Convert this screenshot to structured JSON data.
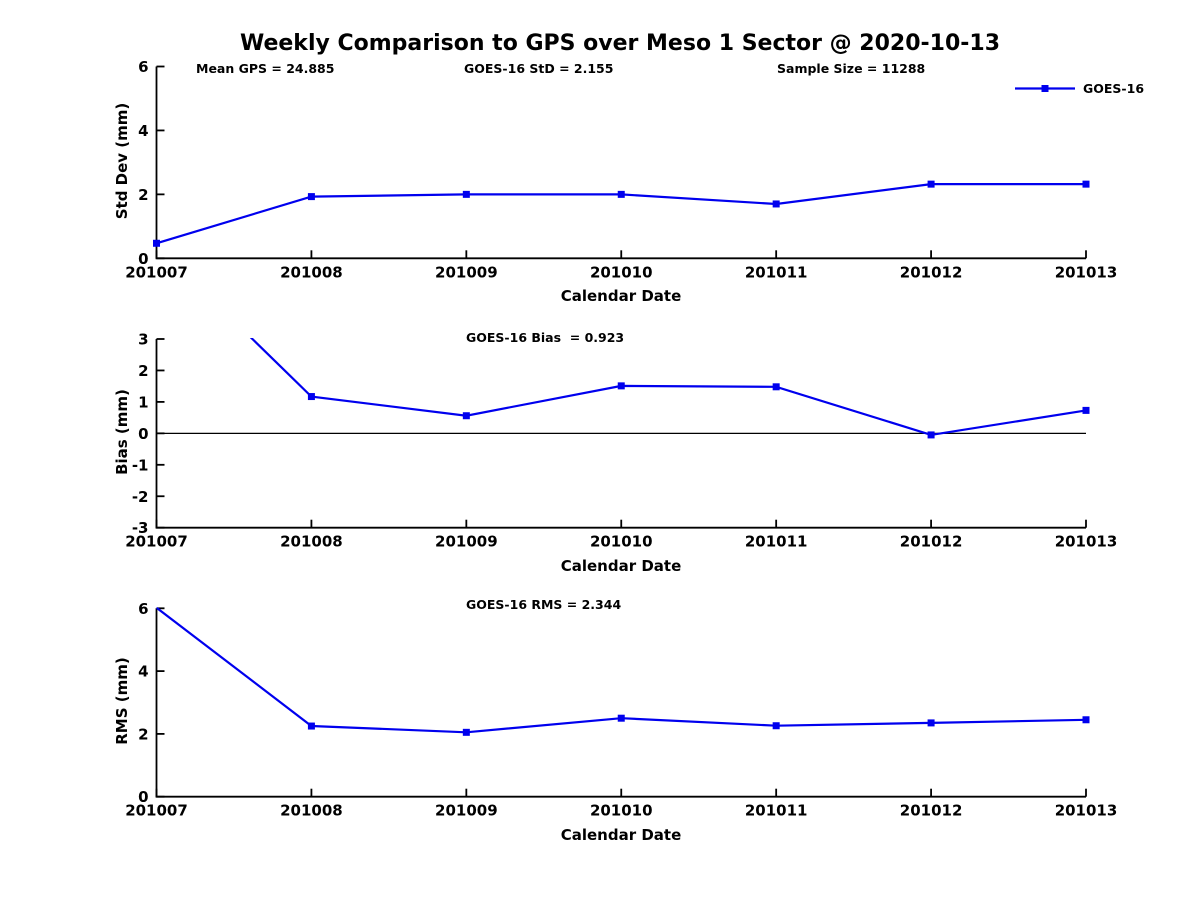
{
  "figure_title": "Weekly Comparison to GPS over Meso 1 Sector @ 2020-10-13",
  "header_annotations": {
    "mean_gps": "Mean GPS = 24.885",
    "sample_size": "Sample Size = 11288"
  },
  "legend": {
    "label": "GOES-16",
    "position": "top-right",
    "framed": false
  },
  "colors": {
    "series": "#0000EE",
    "axis": "#000000",
    "zero_line": "#000000",
    "background": "#FFFFFF",
    "text": "#000000"
  },
  "xlabel": "Calendar Date",
  "chart_data": [
    {
      "type": "line",
      "name": "std-dev",
      "series_name": "GOES-16",
      "annotation": "GOES-16 StD = 2.155",
      "ylabel": "Std Dev (mm)",
      "categories": [
        "201007",
        "201008",
        "201009",
        "201010",
        "201011",
        "201012",
        "201013"
      ],
      "values": [
        0.47,
        1.93,
        2.0,
        2.0,
        1.7,
        2.32,
        2.32
      ],
      "ylim": [
        0,
        6
      ],
      "yticks": [
        0,
        2,
        4,
        6
      ],
      "zero_line": false,
      "grid": false,
      "marker": "square"
    },
    {
      "type": "line",
      "name": "bias",
      "series_name": "GOES-16",
      "annotation": "GOES-16 Bias  = 0.923",
      "ylabel": "Bias (mm)",
      "categories": [
        "201007",
        "201008",
        "201009",
        "201010",
        "201011",
        "201012",
        "201013"
      ],
      "values": [
        5.98,
        1.17,
        0.56,
        1.51,
        1.48,
        -0.05,
        0.73
      ],
      "ylim": [
        -3,
        3
      ],
      "yticks": [
        3,
        2,
        1,
        0,
        -1,
        -2,
        -3
      ],
      "zero_line": true,
      "grid": false,
      "marker": "square"
    },
    {
      "type": "line",
      "name": "rms",
      "series_name": "GOES-16",
      "annotation": "GOES-16 RMS = 2.344",
      "ylabel": "RMS (mm)",
      "categories": [
        "201007",
        "201008",
        "201009",
        "201010",
        "201011",
        "201012",
        "201013"
      ],
      "values": [
        6.02,
        2.25,
        2.05,
        2.5,
        2.26,
        2.35,
        2.45
      ],
      "ylim": [
        0,
        6
      ],
      "yticks": [
        0,
        2,
        4,
        6
      ],
      "zero_line": false,
      "grid": false,
      "marker": "square"
    }
  ]
}
